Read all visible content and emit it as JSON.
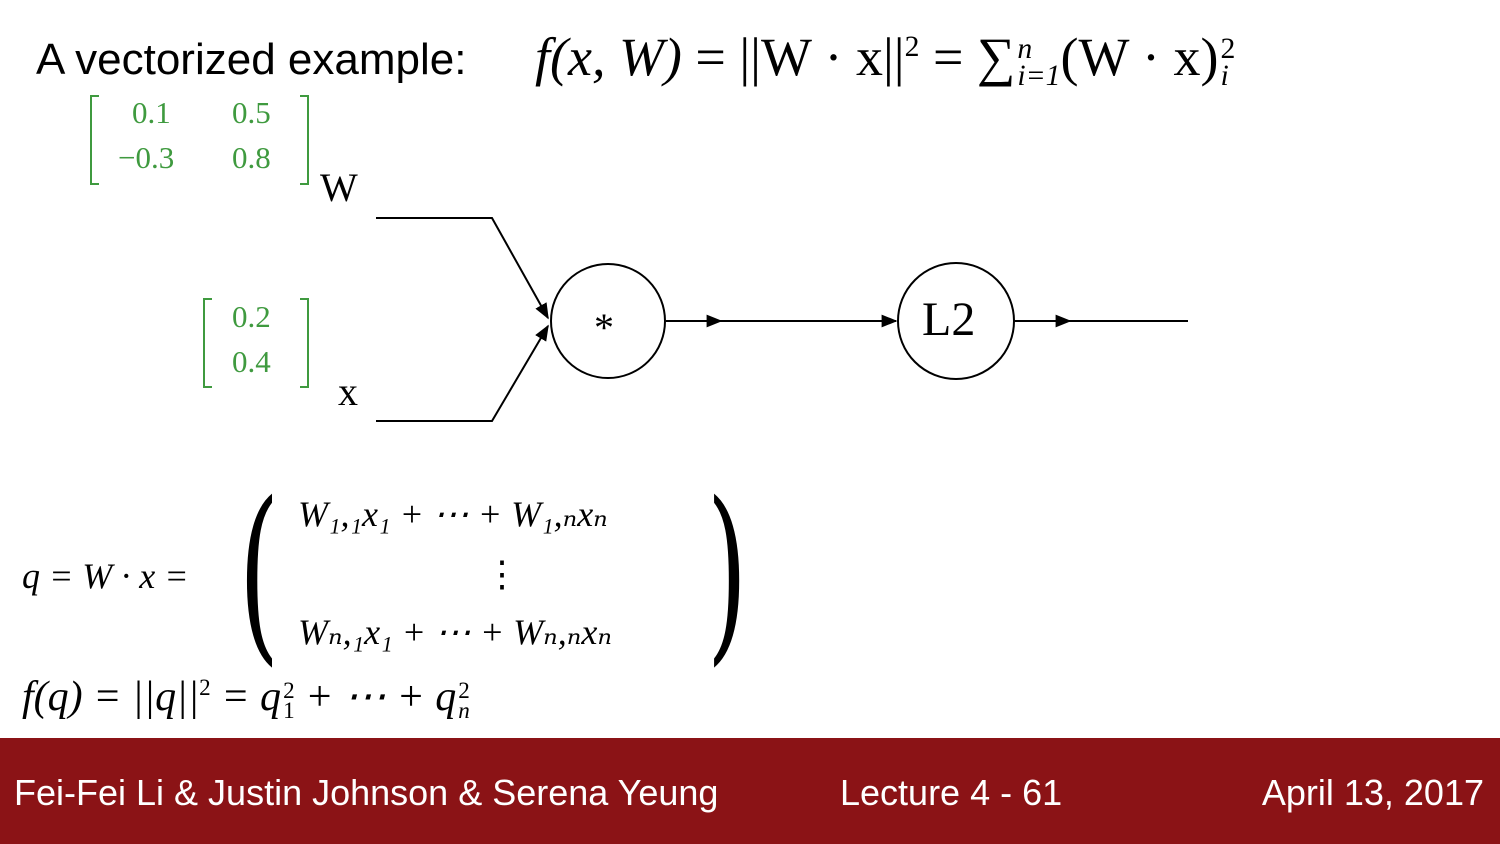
{
  "slide": {
    "title_prefix": "A vectorized example:",
    "title_equation": {
      "lhs": "f(x, W)",
      "eq1": " = ||W · x||",
      "sup1": "2",
      "eq2": " = ∑",
      "sum_upper": "n",
      "sum_lower": "i=1",
      "eq3": "(W · x)",
      "sup2": "2",
      "sub2": "i"
    },
    "matrix_W": {
      "a11": "0.1",
      "a12": "0.5",
      "a21": "−0.3",
      "a22": "0.8"
    },
    "vector_x": {
      "a1": "0.2",
      "a2": "0.4"
    },
    "label_W": "W",
    "label_x": "x",
    "node_mul_label": "*",
    "node_l2_label": "L2",
    "q_equation": {
      "lhs": "q = W · x =",
      "row1": "W₁,₁x₁ + ⋯ + W₁,ₙxₙ",
      "vdots": "⋮",
      "row2": "Wₙ,₁x₁ + ⋯ + Wₙ,ₙxₙ"
    },
    "f_equation": {
      "part1": "f(q) = ||q||",
      "sup": "2",
      "part2": " = q",
      "sup_a": "2",
      "sub_a": "1",
      "part3": " + ⋯ + q",
      "sup_b": "2",
      "sub_b": "n"
    }
  },
  "footer": {
    "authors": "Fei-Fei Li & Justin Johnson & Serena Yeung",
    "lecture": "Lecture 4 - 61",
    "date": "April 13, 2017"
  },
  "colors": {
    "footer_bg": "#8b1316",
    "matrix_green": "#3f9a3f"
  }
}
